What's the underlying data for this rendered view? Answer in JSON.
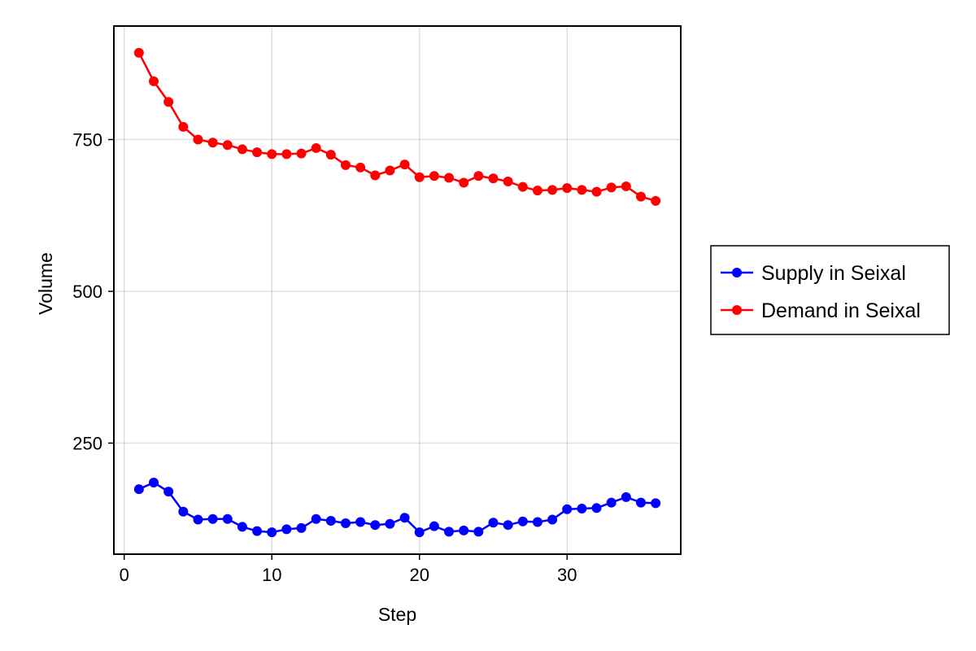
{
  "chart_data": {
    "type": "line",
    "xlabel": "Step",
    "ylabel": "Volume",
    "xlim": [
      -0.7,
      37.7
    ],
    "ylim": [
      67,
      937
    ],
    "xticks": [
      0,
      10,
      20,
      30
    ],
    "yticks": [
      250,
      500,
      750
    ],
    "grid": true,
    "legend_position": "right",
    "series": [
      {
        "name": "Supply in Seixal",
        "color": "#0000ff",
        "x": [
          1,
          2,
          3,
          4,
          5,
          6,
          7,
          8,
          9,
          10,
          11,
          12,
          13,
          14,
          15,
          16,
          17,
          18,
          19,
          20,
          21,
          22,
          23,
          24,
          25,
          26,
          27,
          28,
          29,
          30,
          31,
          32,
          33,
          34,
          35,
          36
        ],
        "y": [
          174,
          185,
          170,
          137,
          124,
          125,
          125,
          112,
          105,
          103,
          108,
          110,
          125,
          122,
          118,
          120,
          115,
          117,
          127,
          103,
          113,
          104,
          106,
          104,
          119,
          115,
          121,
          120,
          124,
          141,
          142,
          143,
          152,
          161,
          152,
          151
        ]
      },
      {
        "name": "Demand in Seixal",
        "color": "#ff0000",
        "x": [
          1,
          2,
          3,
          4,
          5,
          6,
          7,
          8,
          9,
          10,
          11,
          12,
          13,
          14,
          15,
          16,
          17,
          18,
          19,
          20,
          21,
          22,
          23,
          24,
          25,
          26,
          27,
          28,
          29,
          30,
          31,
          32,
          33,
          34,
          35,
          36
        ],
        "y": [
          893,
          846,
          812,
          771,
          750,
          745,
          741,
          734,
          729,
          726,
          726,
          727,
          736,
          725,
          708,
          704,
          691,
          699,
          709,
          688,
          690,
          687,
          679,
          690,
          686,
          681,
          672,
          666,
          667,
          670,
          667,
          664,
          671,
          673,
          656,
          649
        ]
      }
    ]
  }
}
